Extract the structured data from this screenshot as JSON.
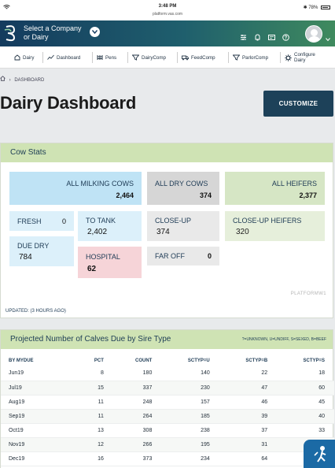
{
  "status_bar": {
    "time": "3:48 PM",
    "url": "platform.vas.com",
    "battery": "78%"
  },
  "topbar": {
    "company_select": [
      "Select a Company",
      "or Dairy"
    ]
  },
  "nav": [
    "Dairy",
    "Dashboard",
    "Pens",
    "DairyComp",
    "FeedComp",
    "ParlorComp",
    "Configure Dairy"
  ],
  "breadcrumb": "DASHBOARD",
  "page_title": "Dairy Dashboard",
  "customize_label": "CUSTOMIZE",
  "cow_stats": {
    "title": "Cow Stats",
    "all_milking_cows": {
      "label": "ALL MILKING COWS",
      "value": "2,464"
    },
    "all_dry_cows": {
      "label": "ALL DRY COWS",
      "value": "374"
    },
    "all_heifers": {
      "label": "ALL HEIFERS",
      "value": "2,377"
    },
    "fresh": {
      "label": "FRESH",
      "value": "0"
    },
    "to_tank": {
      "label": "TO TANK",
      "value": "2,402"
    },
    "close_up": {
      "label": "CLOSE-UP",
      "value": "374"
    },
    "close_up_heifers": {
      "label": "CLOSE-UP HEIFERS",
      "value": "320"
    },
    "due_dry": {
      "label": "DUE DRY",
      "value": "784"
    },
    "hospital": {
      "label": "HOSPITAL",
      "value": "62"
    },
    "far_off": {
      "label": "FAR OFF",
      "value": "0"
    },
    "platform_tag": "PLATFORMW1",
    "updated": "UPDATED: (3 HOURS AGO)"
  },
  "calves": {
    "title": "Projected Number of Calves Due by Sire Type",
    "legend": "?=UNKNOWN, U=UNDIFF, S=SEXED, B=BEEF",
    "columns": [
      "BY MYDUE",
      "PCT",
      "COUNT",
      "SCTYP=U",
      "SCTYP=B",
      "SCTYP=S"
    ],
    "rows": [
      [
        "Jun19",
        "8",
        "180",
        "140",
        "22",
        "18"
      ],
      [
        "Jul19",
        "15",
        "337",
        "230",
        "47",
        "60"
      ],
      [
        "Aug19",
        "11",
        "248",
        "157",
        "46",
        "45"
      ],
      [
        "Sep19",
        "11",
        "264",
        "185",
        "39",
        "40"
      ],
      [
        "Oct19",
        "13",
        "308",
        "238",
        "37",
        "33"
      ],
      [
        "Nov19",
        "12",
        "266",
        "195",
        "31",
        "40"
      ],
      [
        "Dec19",
        "16",
        "373",
        "234",
        "64",
        "75"
      ]
    ]
  },
  "colors": {
    "header_dark": "#143b5e",
    "accent_green": "#cfe3b4",
    "button_navy": "#1d4159"
  }
}
